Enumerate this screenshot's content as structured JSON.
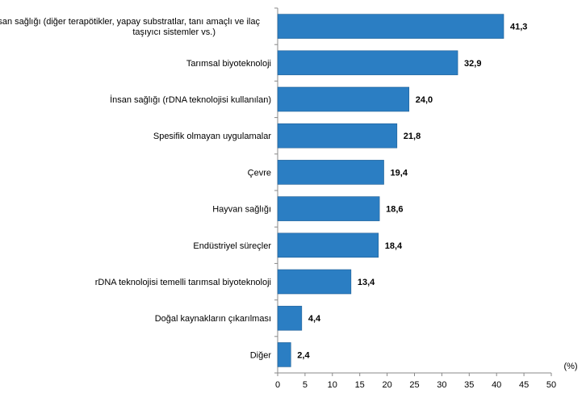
{
  "chart_data": {
    "type": "bar",
    "orientation": "horizontal",
    "title": "",
    "xlabel": "",
    "ylabel": "",
    "unit_label": "(%)",
    "categories": [
      [
        "İnsan sağlığı (diğer terapötikler, yapay substratlar, tanı amaçlı ve ilaç",
        "taşıyıcı sistemler vs.)"
      ],
      [
        "Tarımsal biyoteknoloji"
      ],
      [
        "İnsan sağlığı (rDNA teknolojisi kullanılan)"
      ],
      [
        "Spesifik olmayan uygulamalar"
      ],
      [
        "Çevre"
      ],
      [
        "Hayvan sağlığı"
      ],
      [
        "Endüstriyel süreçler"
      ],
      [
        "rDNA teknolojisi temelli tarımsal biyoteknoloji"
      ],
      [
        "Doğal kaynakların çıkarılması"
      ],
      [
        "Diğer"
      ]
    ],
    "values": [
      41.3,
      32.9,
      24.0,
      21.8,
      19.4,
      18.6,
      18.4,
      13.4,
      4.4,
      2.4
    ],
    "value_labels": [
      "41,3",
      "32,9",
      "24,0",
      "21,8",
      "19,4",
      "18,6",
      "18,4",
      "13,4",
      "4,4",
      "2,4"
    ],
    "xlim": [
      0,
      50
    ],
    "xticks": [
      0,
      5,
      10,
      15,
      20,
      25,
      30,
      35,
      40,
      45,
      50
    ],
    "grid": false,
    "legend": "none",
    "bar_color": "#2b7ec3",
    "bar_border_color": "#1f5f94"
  }
}
